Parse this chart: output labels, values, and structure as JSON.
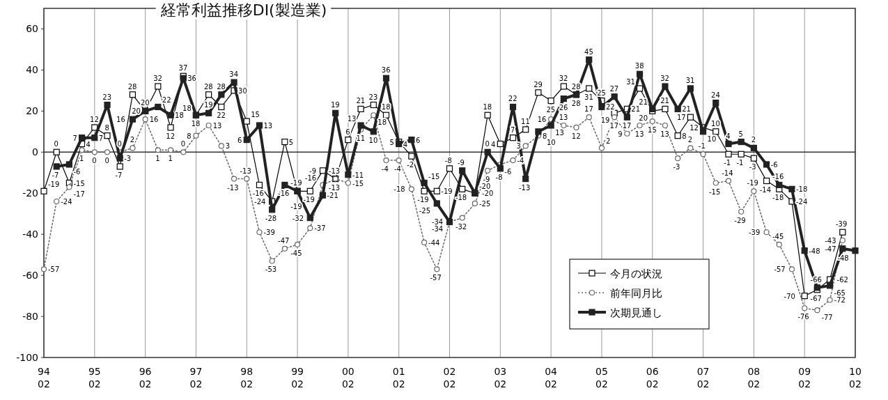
{
  "chart_data": {
    "type": "line",
    "title": "経常利益推移DI(製造業)",
    "categories": [
      "94\n02",
      null,
      null,
      null,
      "95\n02",
      null,
      null,
      null,
      "96\n02",
      null,
      null,
      null,
      "97\n02",
      null,
      null,
      null,
      "98\n02",
      null,
      null,
      null,
      "99\n02",
      null,
      null,
      null,
      "00\n02",
      null,
      null,
      null,
      "01\n02",
      null,
      null,
      null,
      "02\n02",
      null,
      null,
      null,
      "03\n02",
      null,
      null,
      null,
      "04\n02",
      null,
      null,
      null,
      "05\n02",
      null,
      null,
      null,
      "06\n02",
      null,
      null,
      null,
      "07\n02",
      null,
      null,
      null,
      "08\n02",
      null,
      null,
      null,
      "09\n02",
      null,
      null,
      null,
      "10\n02"
    ],
    "series": [
      {
        "name": "今月の状況",
        "color": "#000000",
        "marker": "square",
        "line_style": "solid",
        "values": [
          -19,
          0,
          -15,
          4,
          12,
          8,
          -7,
          28,
          20,
          32,
          12,
          37,
          18,
          28,
          22,
          30,
          15,
          -16,
          -24,
          5,
          -19,
          -19,
          -9,
          -13,
          6,
          21,
          23,
          18,
          5,
          -2,
          -19,
          -19,
          -8,
          -18,
          -20,
          18,
          4,
          7,
          11,
          29,
          25,
          32,
          28,
          31,
          25,
          19,
          21,
          31,
          20,
          21,
          8,
          17,
          12,
          10,
          -1,
          -1,
          -3,
          -14,
          -18,
          -24,
          -70,
          -67,
          -62,
          -39,
          null
        ]
      },
      {
        "name": "前年同月比",
        "color": "#666666",
        "marker": "circle",
        "line_style": "dotted",
        "values": [
          -57,
          -24,
          -17,
          1,
          0,
          0,
          0,
          2,
          16,
          1,
          1,
          0,
          8,
          13,
          3,
          -13,
          -13,
          -39,
          -53,
          -47,
          -45,
          -37,
          -16,
          -13,
          -15,
          11,
          18,
          -4,
          -4,
          -18,
          -44,
          -57,
          -34,
          -32,
          -25,
          -9,
          -6,
          -4,
          3,
          8,
          16,
          13,
          12,
          17,
          2,
          17,
          9,
          13,
          15,
          13,
          -3,
          2,
          -1,
          -15,
          -14,
          -29,
          -19,
          -39,
          -45,
          -57,
          -76,
          -77,
          -72,
          -43,
          null
        ]
      },
      {
        "name": "次期見通し",
        "color": "#222222",
        "marker": "square",
        "line_style": "solid",
        "values": [
          null,
          -7,
          -6,
          7,
          7,
          23,
          -3,
          16,
          20,
          22,
          18,
          36,
          18,
          19,
          28,
          34,
          6,
          13,
          -28,
          -16,
          -19,
          -32,
          -21,
          19,
          -11,
          13,
          10,
          36,
          4,
          6,
          -15,
          -25,
          -34,
          -9,
          -20,
          0,
          -8,
          22,
          -13,
          10,
          13,
          26,
          28,
          45,
          22,
          27,
          17,
          38,
          21,
          32,
          21,
          31,
          10,
          24,
          4,
          5,
          2,
          -6,
          -16,
          -18,
          -48,
          -66,
          -65,
          -47,
          -48
        ]
      }
    ],
    "ylim": [
      -100,
      70
    ],
    "yticks": [
      -100,
      -80,
      -60,
      -40,
      -20,
      0,
      20,
      40,
      60
    ],
    "ref_lines": [
      {
        "axis": "y",
        "value": 0,
        "color": "#333333"
      }
    ],
    "grid": "x",
    "legend": "bottom right",
    "data_labels": true
  }
}
